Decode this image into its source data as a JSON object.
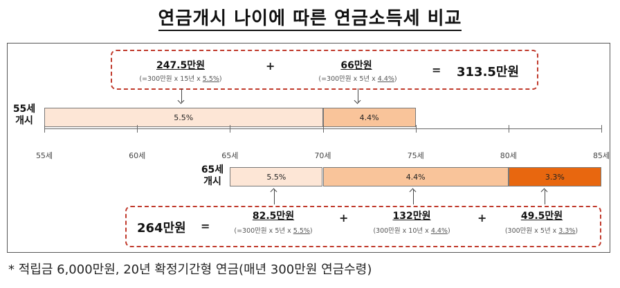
{
  "title": "연금개시 나이에 따른 연금소득세 비교",
  "colors": {
    "light": "#fde6d6",
    "medium": "#f9c49a",
    "dark": "#e8670f",
    "dashed": "#c0392b"
  },
  "axis": {
    "ticks": [
      "55세",
      "60세",
      "65세",
      "70세",
      "75세",
      "80세",
      "85세"
    ],
    "range": [
      55,
      85
    ]
  },
  "start55": {
    "label_line1": "55세",
    "label_line2": "개시",
    "segments": [
      {
        "label": "5.5%",
        "from": 55,
        "to": 70,
        "tone": "light"
      },
      {
        "label": "4.4%",
        "from": 70,
        "to": 75,
        "tone": "medium"
      }
    ],
    "terms": [
      {
        "amount": "247.5만원",
        "formula_prefix": "(=300만원 x 15년 x ",
        "formula_rate": "5.5%",
        "formula_suffix": ")"
      },
      {
        "amount": "66만원",
        "formula_prefix": "(=300만원 x 5년 x ",
        "formula_rate": "4.4%",
        "formula_suffix": ")"
      }
    ],
    "plus": "+",
    "equals": "=",
    "total": "313.5만원"
  },
  "start65": {
    "label_line1": "65세",
    "label_line2": "개시",
    "segments": [
      {
        "label": "5.5%",
        "from": 65,
        "to": 70,
        "tone": "light"
      },
      {
        "label": "4.4%",
        "from": 70,
        "to": 80,
        "tone": "medium"
      },
      {
        "label": "3.3%",
        "from": 80,
        "to": 85,
        "tone": "dark"
      }
    ],
    "terms": [
      {
        "amount": "82.5만원",
        "formula_prefix": "(=300만원 x 5년 x ",
        "formula_rate": "5.5%",
        "formula_suffix": ")"
      },
      {
        "amount": "132만원",
        "formula_prefix": "(300만원 x 10년 x ",
        "formula_rate": "4.4%",
        "formula_suffix": ")"
      },
      {
        "amount": "49.5만원",
        "formula_prefix": "(300만원 x 5년 x ",
        "formula_rate": "3.3%",
        "formula_suffix": ")"
      }
    ],
    "plus": "+",
    "equals": "=",
    "total": "264만원"
  },
  "footnote": "* 적립금 6,000만원, 20년 확정기간형 연금(매년 300만원 연금수령)"
}
